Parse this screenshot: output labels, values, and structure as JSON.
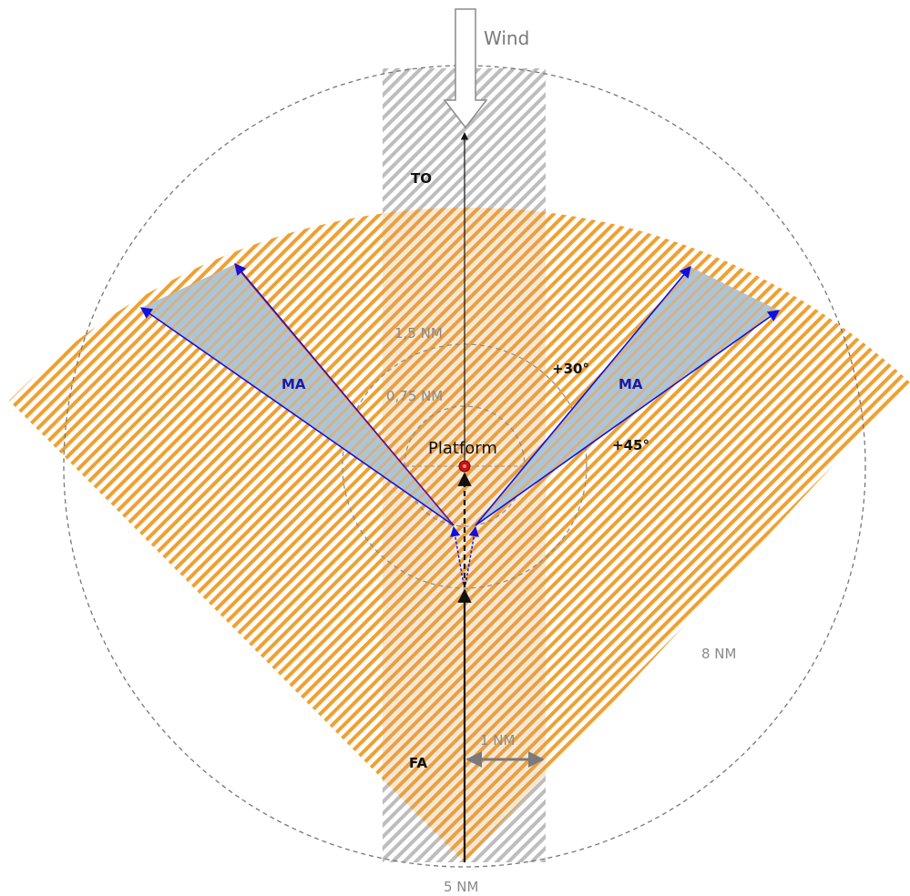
{
  "labels": {
    "wind": "Wind",
    "takeoff": "TO",
    "missed_approach_left": "MA",
    "missed_approach_right": "MA",
    "platform": "Platform",
    "ring_1_5": "1,5 NM",
    "ring_0_75": "0,75 NM",
    "angle_30": "+30°",
    "angle_45": "+45°",
    "radius_8": "8 NM",
    "half_width": "1 NM",
    "final_approach": "FA",
    "range_5": "5 NM"
  },
  "colors": {
    "sector_hatch": "#f0a030",
    "corridor_hatch": "#bdbdbd",
    "corridor_overlap": "#d9a264",
    "missed_approach_fill": "#a9c6dc",
    "missed_approach_edge": "#1010e0",
    "missed_approach_edge_red": "#c01010",
    "platform_marker": "#cc1111",
    "circle_dash": "#777777",
    "track_line": "#111111"
  },
  "icons": {
    "wind_arrow": "down-arrow-outline-icon",
    "platform_marker": "red-dot-icon"
  }
}
